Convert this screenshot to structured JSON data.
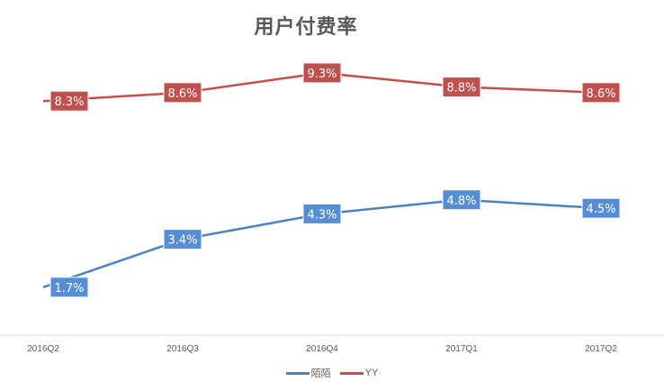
{
  "chart_data": {
    "type": "line",
    "title": "用户付费率",
    "categories": [
      "2016Q2",
      "2016Q3",
      "2016Q4",
      "2017Q1",
      "2017Q2"
    ],
    "series": [
      {
        "name": "陌陌",
        "color": "#4f81bd",
        "label_color": "#558ed5",
        "values": [
          1.7,
          3.4,
          4.3,
          4.8,
          4.5
        ],
        "labels": [
          "1.7%",
          "3.4%",
          "4.3%",
          "4.8%",
          "4.5%"
        ]
      },
      {
        "name": "YY",
        "color": "#c0504d",
        "label_color": "#c0504d",
        "values": [
          8.3,
          8.6,
          9.3,
          8.8,
          8.6
        ],
        "labels": [
          "8.3%",
          "8.6%",
          "9.3%",
          "8.8%",
          "8.6%"
        ]
      }
    ],
    "ylim": [
      0,
      10
    ],
    "xlabel": "",
    "ylabel": "",
    "grid": false,
    "legend": "bottom"
  }
}
